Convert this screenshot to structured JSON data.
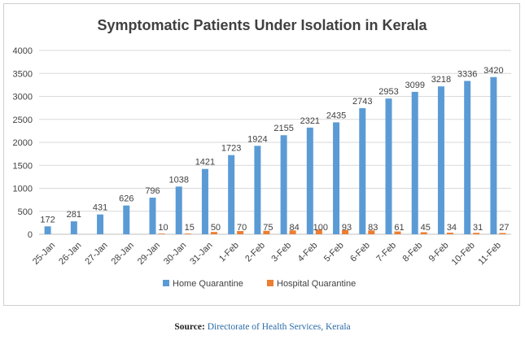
{
  "chart_data": {
    "type": "bar",
    "title": "Symptomatic Patients Under Isolation in Kerala",
    "xlabel": "",
    "ylabel": "",
    "ylim": [
      0,
      4000
    ],
    "yticks": [
      0,
      500,
      1000,
      1500,
      2000,
      2500,
      3000,
      3500,
      4000
    ],
    "categories": [
      "25-Jan",
      "26-Jan",
      "27-Jan",
      "28-Jan",
      "29-Jan",
      "30-Jan",
      "31-Jan",
      "1-Feb",
      "2-Feb",
      "3-Feb",
      "4-Feb",
      "5-Feb",
      "6-Feb",
      "7-Feb",
      "8-Feb",
      "9-Feb",
      "10-Feb",
      "11-Feb"
    ],
    "series": [
      {
        "name": "Home Quarantine",
        "color": "#5b9bd5",
        "values": [
          172,
          281,
          431,
          626,
          796,
          1038,
          1421,
          1723,
          1924,
          2155,
          2321,
          2435,
          2743,
          2953,
          3099,
          3218,
          3336,
          3420
        ]
      },
      {
        "name": "Hospital Quarantine",
        "color": "#ed7d31",
        "values": [
          null,
          null,
          null,
          null,
          10,
          15,
          50,
          70,
          75,
          84,
          100,
          93,
          83,
          61,
          45,
          34,
          31,
          27
        ]
      }
    ],
    "legend_position": "bottom",
    "grid": true
  },
  "source": {
    "label": "Source:",
    "value": "Directorate of Health Services, Kerala"
  }
}
